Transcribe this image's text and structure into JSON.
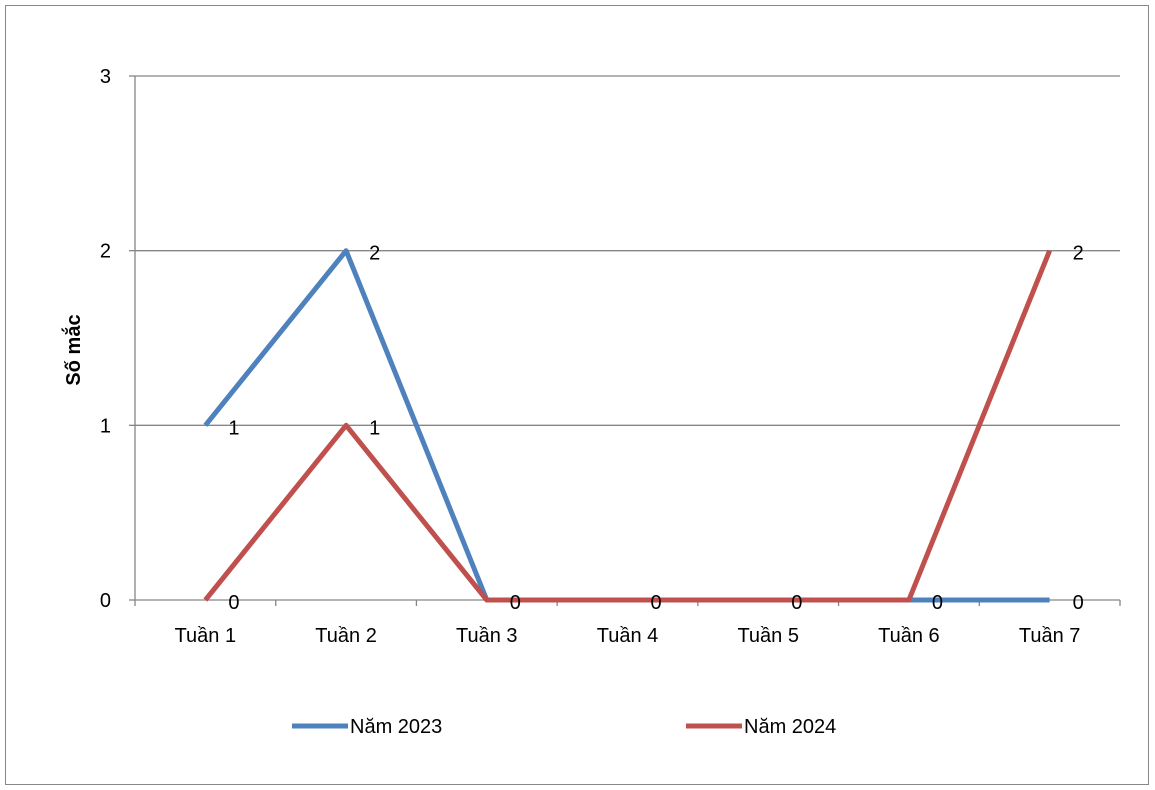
{
  "chart_data": {
    "type": "line",
    "title": "",
    "xlabel": "",
    "ylabel": "Số mắc",
    "categories": [
      "Tuần 1",
      "Tuần 2",
      "Tuần 3",
      "Tuần 4",
      "Tuần 5",
      "Tuần 6",
      "Tuần 7"
    ],
    "ylim": [
      0,
      3
    ],
    "yticks": [
      0,
      1,
      2,
      3
    ],
    "grid": true,
    "legend_position": "bottom",
    "series": [
      {
        "name": "Năm 2023",
        "color": "#4F81BD",
        "values": [
          1,
          2,
          0,
          0,
          0,
          0,
          0
        ],
        "data_labels": [
          1,
          2,
          null,
          null,
          null,
          null,
          0
        ]
      },
      {
        "name": "Năm 2024",
        "color": "#C0504D",
        "values": [
          0,
          1,
          0,
          0,
          0,
          0,
          2
        ],
        "data_labels": [
          0,
          1,
          0,
          0,
          0,
          0,
          2
        ]
      }
    ]
  }
}
